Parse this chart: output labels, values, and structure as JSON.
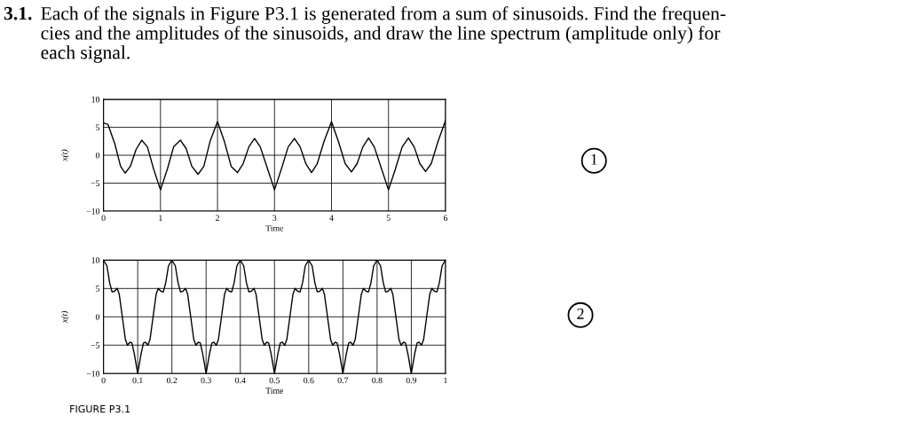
{
  "chart_data": [
    {
      "type": "line",
      "title": "Each of the signals in Figure P3.1 is generated from a sum of sinusoids. Find the frequen-\ncies and the amplitudes of the sinusoids, and draw the line spectrum (amplitude only) for\neach signal.",
      "xlabel": "Time",
      "ylabel": "x(t)",
      "annotations": [
        "3.1.",
        "1"
      ],
      "xlim": [
        0,
        6
      ],
      "xticks": [
        0,
        1,
        2,
        3,
        4,
        5,
        6
      ],
      "ylim": [
        -10,
        10
      ],
      "yticks": [
        -10,
        -5,
        0,
        5,
        10
      ],
      "grid": true,
      "series": [
        {
          "color": "#000000",
          "x": [
            0,
            0.08,
            0.2,
            0.3,
            0.38,
            0.47,
            0.57,
            0.67,
            0.77,
            0.88,
            1.0,
            1.12,
            1.23,
            1.35,
            1.45,
            1.55,
            1.66,
            1.76,
            1.87,
            2.0,
            2.12,
            2.24,
            2.35,
            2.45,
            2.55,
            2.65,
            2.75,
            2.88,
            3.0,
            3.12,
            3.24,
            3.35,
            3.45,
            3.55,
            3.65,
            3.75,
            3.87,
            4.0,
            4.12,
            4.24,
            4.35,
            4.45,
            4.55,
            4.65,
            4.75,
            4.88,
            5.0,
            5.12,
            5.24,
            5.35,
            5.45,
            5.55,
            5.65,
            5.75,
            5.87,
            6.0
          ],
          "values": [
            5.8,
            5.5,
            2,
            -2,
            -3.2,
            -2,
            1,
            2.7,
            1.5,
            -2.5,
            -6.2,
            -2.5,
            1.5,
            2.7,
            1.2,
            -2,
            -3.4,
            -2,
            2.5,
            6,
            2.5,
            -2,
            -3.1,
            -1.5,
            1.5,
            3,
            1.5,
            -2.5,
            -6.2,
            -2.5,
            1.5,
            3,
            1.5,
            -1.5,
            -3.1,
            -1.5,
            2.5,
            6,
            2.5,
            -1.5,
            -3,
            -1.5,
            1.5,
            3.1,
            1.5,
            -2.5,
            -6.2,
            -2.5,
            1.5,
            3.1,
            1.5,
            -1.5,
            -2.9,
            -1.5,
            2.5,
            6.2
          ]
        }
      ]
    },
    {
      "type": "line",
      "xlabel": "Time",
      "ylabel": "x(t)",
      "annotations": [
        "2",
        "FIGURE P3.1"
      ],
      "xlim": [
        0,
        1
      ],
      "xticks": [
        0,
        0.1,
        0.2,
        0.3,
        0.4,
        0.5,
        0.6,
        0.7,
        0.8,
        0.9,
        1
      ],
      "ylim": [
        -10,
        10
      ],
      "yticks": [
        -10,
        -5,
        0,
        5,
        10
      ],
      "grid": true,
      "series": [
        {
          "color": "#000000",
          "x": [
            0,
            0.01,
            0.018,
            0.025,
            0.032,
            0.04,
            0.046,
            0.055,
            0.064,
            0.07,
            0.077,
            0.083,
            0.09,
            0.1,
            0.11,
            0.117,
            0.123,
            0.13,
            0.136,
            0.145,
            0.154,
            0.16,
            0.168,
            0.175,
            0.182,
            0.19,
            0.2,
            0.21,
            0.218,
            0.225,
            0.232,
            0.24,
            0.246,
            0.255,
            0.264,
            0.27,
            0.277,
            0.283,
            0.29,
            0.3,
            0.31,
            0.317,
            0.323,
            0.33,
            0.336,
            0.345,
            0.354,
            0.36,
            0.368,
            0.375,
            0.382,
            0.39,
            0.4,
            0.41,
            0.418,
            0.425,
            0.432,
            0.44,
            0.446,
            0.455,
            0.464,
            0.47,
            0.477,
            0.483,
            0.49,
            0.5,
            0.51,
            0.517,
            0.523,
            0.53,
            0.536,
            0.545,
            0.554,
            0.56,
            0.568,
            0.575,
            0.582,
            0.59,
            0.6,
            0.61,
            0.618,
            0.625,
            0.632,
            0.64,
            0.646,
            0.655,
            0.664,
            0.67,
            0.677,
            0.683,
            0.69,
            0.7,
            0.71,
            0.717,
            0.723,
            0.73,
            0.736,
            0.745,
            0.754,
            0.76,
            0.768,
            0.775,
            0.782,
            0.79,
            0.8,
            0.81,
            0.818,
            0.825,
            0.832,
            0.84,
            0.846,
            0.855,
            0.864,
            0.87,
            0.877,
            0.883,
            0.89,
            0.9,
            0.91,
            0.917,
            0.923,
            0.93,
            0.936,
            0.945,
            0.954,
            0.96,
            0.968,
            0.975,
            0.982,
            0.99,
            1.0
          ],
          "values": [
            10,
            9,
            6,
            4.4,
            4.5,
            5,
            4,
            0,
            -4,
            -5,
            -4.5,
            -4.6,
            -6.5,
            -10,
            -6.5,
            -4.6,
            -4.5,
            -5,
            -4,
            0,
            4,
            5,
            4.5,
            4.4,
            6,
            9,
            10,
            9,
            6,
            4.4,
            4.5,
            5,
            4,
            0,
            -4,
            -5,
            -4.5,
            -4.6,
            -6.5,
            -10,
            -6.5,
            -4.6,
            -4.5,
            -5,
            -4,
            0,
            4,
            5,
            4.5,
            4.4,
            6,
            9,
            10,
            9,
            6,
            4.4,
            4.5,
            5,
            4,
            0,
            -4,
            -5,
            -4.5,
            -4.6,
            -6.5,
            -10,
            -6.5,
            -4.6,
            -4.5,
            -5,
            -4,
            0,
            4,
            5,
            4.5,
            4.4,
            6,
            9,
            10,
            9,
            6,
            4.4,
            4.5,
            5,
            4,
            0,
            -4,
            -5,
            -4.5,
            -4.6,
            -6.5,
            -10,
            -6.5,
            -4.6,
            -4.5,
            -5,
            -4,
            0,
            4,
            5,
            4.5,
            4.4,
            6,
            9,
            10,
            9,
            6,
            4.4,
            4.5,
            5,
            4,
            0,
            -4,
            -5,
            -4.5,
            -4.6,
            -6.5,
            -10,
            -6.5,
            -4.6,
            -4.5,
            -5,
            -4,
            0,
            4,
            5,
            4.5,
            4.4,
            6,
            9,
            10
          ]
        }
      ]
    }
  ]
}
